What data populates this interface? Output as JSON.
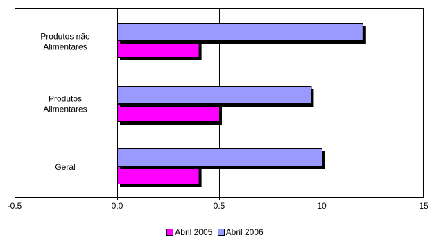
{
  "chart_data": {
    "type": "bar",
    "orientation": "horizontal",
    "categories": [
      [
        "Produtos não",
        "Alimentares"
      ],
      [
        "Produtos",
        "Alimentares"
      ],
      [
        "Geral"
      ]
    ],
    "series": [
      {
        "name": "Abril 2005",
        "color": "#ff00ff",
        "values": [
          0.4,
          0.5,
          0.4
        ]
      },
      {
        "name": "Abril 2006",
        "color": "#9999ff",
        "values": [
          12.0,
          9.0,
          10.0
        ]
      }
    ],
    "xlim": [
      -0.5,
      15
    ],
    "xticks": [
      -0.5,
      0.0,
      0.5,
      10,
      15
    ],
    "xtick_labels": [
      "-0.5",
      "0.0",
      "0.5",
      "10",
      "15"
    ],
    "grid": "vertical",
    "legend_position": "bottom"
  }
}
